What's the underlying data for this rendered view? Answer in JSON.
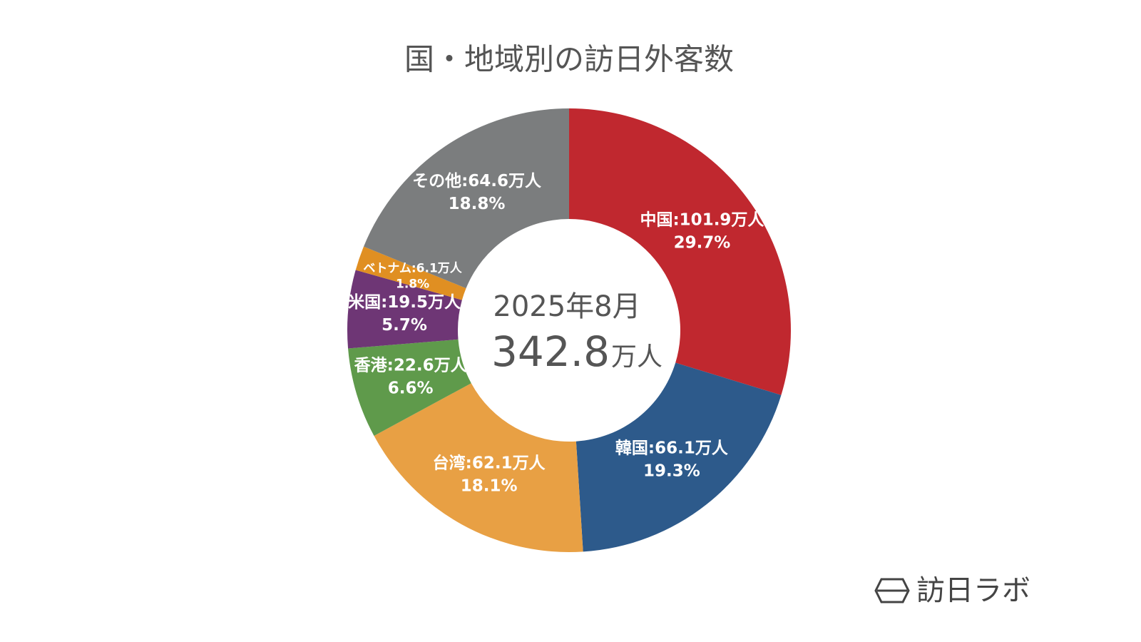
{
  "chart_data": {
    "type": "donut",
    "title": "国・地域別の訪日外客数",
    "values": [
      101.9,
      66.1,
      62.1,
      22.6,
      19.5,
      6.1,
      64.6
    ],
    "value_labels": [
      "中国:101.9万人",
      "韓国:66.1万人",
      "台湾:62.1万人",
      "香港:22.6万人",
      "米国:19.5万人",
      "ベトナム:6.1万人",
      "その他:64.6万人"
    ],
    "percent_labels": [
      "29.7%",
      "19.3%",
      "18.1%",
      "6.6%",
      "5.7%",
      "1.8%",
      "18.8%"
    ],
    "colors": [
      "#c0282f",
      "#2d5a8b",
      "#e8a044",
      "#5f9a4b",
      "#6e3675",
      "#e08f22",
      "#7b7d7e"
    ],
    "center_date": "2025年8月",
    "center_total": "342.8",
    "center_unit": "万人",
    "brand": "訪日ラボ"
  }
}
